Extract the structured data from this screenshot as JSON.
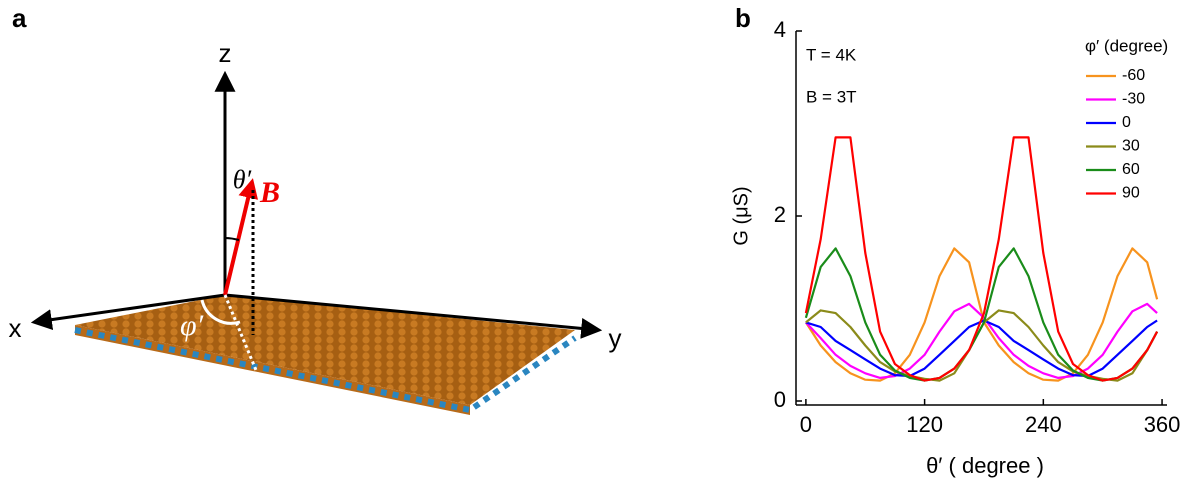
{
  "panel_a": {
    "label": "a",
    "z_label": "z",
    "x_label": "x",
    "y_label": "y",
    "theta_label": "θ′",
    "field_label": "B",
    "phi_label": "φ′"
  },
  "chart_data": {
    "type": "line",
    "panel_label": "b",
    "annotations": [
      "T = 4K",
      "B = 3T"
    ],
    "y_label": "G (μS)",
    "x_label": "θ′ ( degree )",
    "legend_title": "φ′ (degree)",
    "x": [
      0,
      15,
      30,
      45,
      60,
      75,
      90,
      105,
      120,
      135,
      150,
      165,
      180,
      195,
      210,
      225,
      240,
      255,
      270,
      285,
      300,
      315,
      330,
      345,
      355
    ],
    "series": [
      {
        "name": "-60",
        "color": "#f7931e",
        "values": [
          0.85,
          0.6,
          0.42,
          0.3,
          0.23,
          0.22,
          0.3,
          0.5,
          0.85,
          1.35,
          1.65,
          1.5,
          0.85,
          0.6,
          0.42,
          0.3,
          0.23,
          0.22,
          0.3,
          0.5,
          0.85,
          1.35,
          1.65,
          1.5,
          1.1
        ]
      },
      {
        "name": "-30",
        "color": "#ff00ff",
        "values": [
          0.85,
          0.68,
          0.5,
          0.38,
          0.3,
          0.25,
          0.27,
          0.35,
          0.5,
          0.75,
          0.97,
          1.05,
          0.9,
          0.68,
          0.5,
          0.38,
          0.3,
          0.25,
          0.27,
          0.35,
          0.5,
          0.75,
          0.97,
          1.05,
          0.95
        ]
      },
      {
        "name": "0",
        "color": "#0000ff",
        "values": [
          0.85,
          0.8,
          0.65,
          0.55,
          0.45,
          0.35,
          0.28,
          0.27,
          0.35,
          0.5,
          0.65,
          0.8,
          0.87,
          0.8,
          0.65,
          0.55,
          0.45,
          0.35,
          0.28,
          0.27,
          0.35,
          0.5,
          0.65,
          0.8,
          0.87
        ]
      },
      {
        "name": "30",
        "color": "#8b8b1a",
        "values": [
          0.85,
          0.98,
          0.95,
          0.8,
          0.6,
          0.42,
          0.32,
          0.27,
          0.24,
          0.22,
          0.3,
          0.55,
          0.85,
          0.98,
          0.95,
          0.8,
          0.6,
          0.42,
          0.32,
          0.27,
          0.24,
          0.22,
          0.3,
          0.55,
          0.75
        ]
      },
      {
        "name": "60",
        "color": "#1a8c1a",
        "values": [
          0.9,
          1.45,
          1.65,
          1.35,
          0.85,
          0.5,
          0.33,
          0.25,
          0.22,
          0.25,
          0.35,
          0.55,
          0.85,
          1.45,
          1.65,
          1.35,
          0.85,
          0.5,
          0.33,
          0.25,
          0.22,
          0.25,
          0.35,
          0.55,
          0.75
        ]
      },
      {
        "name": "90",
        "color": "#ff0000",
        "values": [
          0.95,
          1.75,
          2.85,
          2.85,
          1.6,
          0.75,
          0.4,
          0.28,
          0.22,
          0.25,
          0.35,
          0.55,
          0.95,
          1.75,
          2.85,
          2.85,
          1.6,
          0.75,
          0.4,
          0.28,
          0.22,
          0.25,
          0.35,
          0.55,
          0.75
        ]
      }
    ],
    "xlim": [
      -10,
      365
    ],
    "ylim": [
      0,
      4
    ],
    "xticks": [
      0,
      120,
      240,
      360
    ],
    "yticks": [
      0,
      2,
      4
    ]
  }
}
